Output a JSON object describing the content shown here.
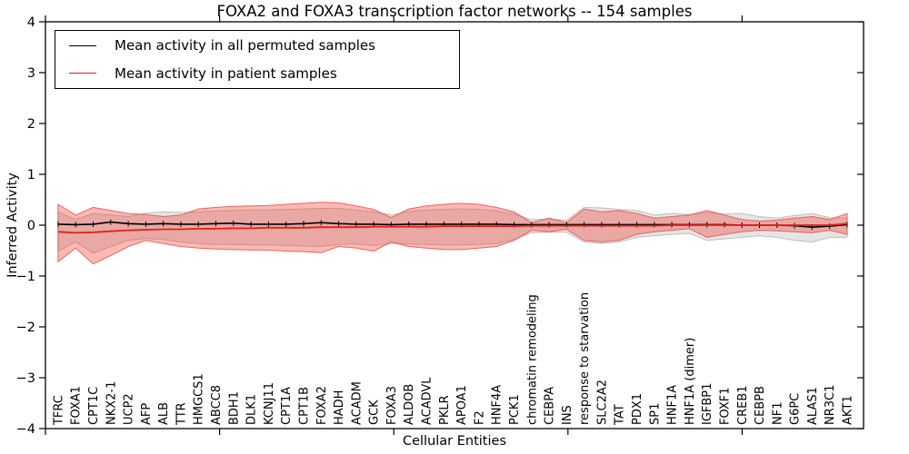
{
  "chart_data": {
    "type": "line",
    "title": "FOXA2 and FOXA3 transcription factor networks -- 154 samples",
    "xlabel": "Cellular Entities",
    "ylabel": "Inferred Activity",
    "ylim": [
      -4,
      4
    ],
    "ytick_labels": [
      "4",
      "3",
      "2",
      "1",
      "0",
      "−1",
      "−2",
      "−3",
      "−4"
    ],
    "grid": false,
    "legend_position": "upper left",
    "colors": {
      "permuted_line": "#000000",
      "patient_line": "#ed1c16",
      "permuted_band_fill": "#e5e5e5",
      "permuted_band_edge": "#bfbfbf",
      "patient_band_fill": "rgba(242,60,50,0.36)",
      "patient_band_edge": "rgba(235,80,70,0.85)"
    },
    "categories": [
      "TFRC",
      "FOXA1",
      "CPT1C",
      "NKX2-1",
      "UCP2",
      "AFP",
      "ALB",
      "TTR",
      "HMGCS1",
      "ABCC8",
      "BDH1",
      "DLK1",
      "KCNJ11",
      "CPT1A",
      "CPT1B",
      "FOXA2",
      "HADH",
      "ACADM",
      "GCK",
      "FOXA3",
      "ALDOB",
      "ACADVL",
      "PKLR",
      "APOA1",
      "F2",
      "HNF4A",
      "PCK1",
      "chromatin remodeling",
      "CEBPA",
      "INS",
      "response to starvation",
      "SLC2A2",
      "TAT",
      "PDX1",
      "SP1",
      "HNF1A",
      "HNF1A (dimer)",
      "IGFBP1",
      "FOXF1",
      "CREB1",
      "CEBPB",
      "NF1",
      "G6PC",
      "ALAS1",
      "NR3C1",
      "AKT1"
    ],
    "series": [
      {
        "name": "Mean activity in all permuted samples",
        "values": [
          0.02,
          0.01,
          0.02,
          0.06,
          0.03,
          0.02,
          0.03,
          0.02,
          0.02,
          0.03,
          0.04,
          0.02,
          0.02,
          0.02,
          0.03,
          0.05,
          0.03,
          0.02,
          0.02,
          0.01,
          0.02,
          0.02,
          0.02,
          0.02,
          0.02,
          0.02,
          0.01,
          0.01,
          0.01,
          0.01,
          0.01,
          0.01,
          0.01,
          0.01,
          0.01,
          0.01,
          0.01,
          0.01,
          0.01,
          0.0,
          0.0,
          0.0,
          -0.01,
          -0.04,
          -0.02,
          0.01
        ],
        "band_hi": [
          0.26,
          0.11,
          0.23,
          0.2,
          0.17,
          0.24,
          0.26,
          0.25,
          0.26,
          0.28,
          0.29,
          0.3,
          0.3,
          0.31,
          0.32,
          0.33,
          0.33,
          0.3,
          0.26,
          0.2,
          0.27,
          0.3,
          0.31,
          0.32,
          0.31,
          0.28,
          0.22,
          0.11,
          0.12,
          0.1,
          0.35,
          0.34,
          0.31,
          0.29,
          0.2,
          0.23,
          0.21,
          0.25,
          0.22,
          0.23,
          0.17,
          0.14,
          0.19,
          0.23,
          0.15,
          0.14
        ],
        "band_lo": [
          -0.51,
          -0.33,
          -0.55,
          -0.42,
          -0.3,
          -0.26,
          -0.28,
          -0.33,
          -0.36,
          -0.38,
          -0.38,
          -0.39,
          -0.39,
          -0.4,
          -0.41,
          -0.42,
          -0.38,
          -0.37,
          -0.4,
          -0.36,
          -0.37,
          -0.38,
          -0.39,
          -0.39,
          -0.38,
          -0.36,
          -0.28,
          -0.15,
          -0.14,
          -0.14,
          -0.33,
          -0.36,
          -0.33,
          -0.24,
          -0.21,
          -0.18,
          -0.16,
          -0.3,
          -0.27,
          -0.24,
          -0.21,
          -0.24,
          -0.3,
          -0.33,
          -0.24,
          -0.24
        ]
      },
      {
        "name": "Mean activity in patient samples",
        "values": [
          -0.13,
          -0.15,
          -0.14,
          -0.12,
          -0.1,
          -0.09,
          -0.08,
          -0.08,
          -0.07,
          -0.07,
          -0.06,
          -0.06,
          -0.05,
          -0.05,
          -0.05,
          -0.04,
          -0.04,
          -0.04,
          -0.03,
          -0.03,
          -0.03,
          -0.03,
          -0.02,
          -0.02,
          -0.02,
          -0.02,
          -0.02,
          -0.01,
          -0.01,
          -0.01,
          -0.01,
          -0.01,
          -0.01,
          -0.01,
          -0.01,
          0.0,
          0.0,
          0.0,
          0.0,
          0.0,
          0.0,
          0.0,
          0.0,
          0.0,
          0.0,
          0.03
        ],
        "band_hi": [
          0.41,
          0.2,
          0.35,
          0.29,
          0.23,
          0.21,
          0.17,
          0.2,
          0.32,
          0.35,
          0.37,
          0.38,
          0.39,
          0.41,
          0.43,
          0.45,
          0.44,
          0.38,
          0.31,
          0.15,
          0.32,
          0.38,
          0.41,
          0.43,
          0.41,
          0.35,
          0.26,
          0.05,
          0.14,
          0.05,
          0.32,
          0.26,
          0.29,
          0.23,
          0.14,
          0.17,
          0.2,
          0.29,
          0.2,
          0.11,
          0.08,
          0.1,
          0.14,
          0.17,
          0.11,
          0.23
        ],
        "band_lo": [
          -0.72,
          -0.45,
          -0.76,
          -0.6,
          -0.42,
          -0.3,
          -0.36,
          -0.42,
          -0.45,
          -0.47,
          -0.48,
          -0.49,
          -0.49,
          -0.51,
          -0.52,
          -0.54,
          -0.42,
          -0.45,
          -0.51,
          -0.33,
          -0.42,
          -0.45,
          -0.48,
          -0.48,
          -0.45,
          -0.42,
          -0.3,
          -0.1,
          -0.13,
          -0.08,
          -0.3,
          -0.33,
          -0.3,
          -0.18,
          -0.13,
          -0.1,
          -0.07,
          -0.24,
          -0.18,
          -0.13,
          -0.1,
          -0.11,
          -0.13,
          -0.15,
          -0.1,
          -0.18
        ]
      }
    ]
  }
}
